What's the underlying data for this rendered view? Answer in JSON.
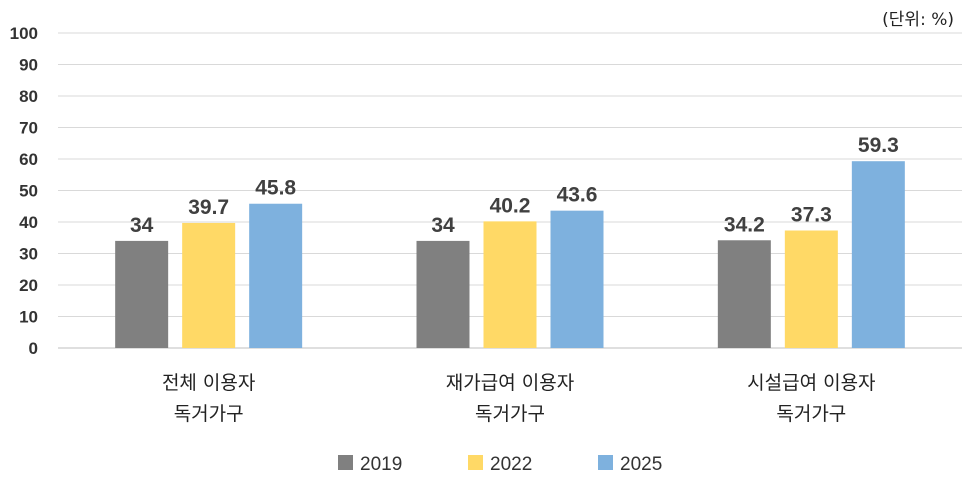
{
  "chart_data": {
    "type": "bar",
    "unit_note": "(단위: %)",
    "categories": [
      [
        "전체 이용자",
        "독거가구"
      ],
      [
        "재가급여 이용자",
        "독거가구"
      ],
      [
        "시설급여 이용자",
        "독거가구"
      ]
    ],
    "series": [
      {
        "name": "2019",
        "color": "#808080",
        "values": [
          34,
          34,
          34.2
        ],
        "labels": [
          "34",
          "34",
          "34.2"
        ]
      },
      {
        "name": "2022",
        "color": "#ffd966",
        "values": [
          39.7,
          40.2,
          37.3
        ],
        "labels": [
          "39.7",
          "40.2",
          "37.3"
        ]
      },
      {
        "name": "2025",
        "color": "#7eb1de",
        "values": [
          45.8,
          43.6,
          59.3
        ],
        "labels": [
          "45.8",
          "43.6",
          "59.3"
        ]
      }
    ],
    "ylim": [
      0,
      100
    ],
    "yticks": [
      "0",
      "10",
      "20",
      "30",
      "40",
      "50",
      "60",
      "70",
      "80",
      "90",
      "100"
    ],
    "grid": true,
    "legend": "bottom"
  }
}
